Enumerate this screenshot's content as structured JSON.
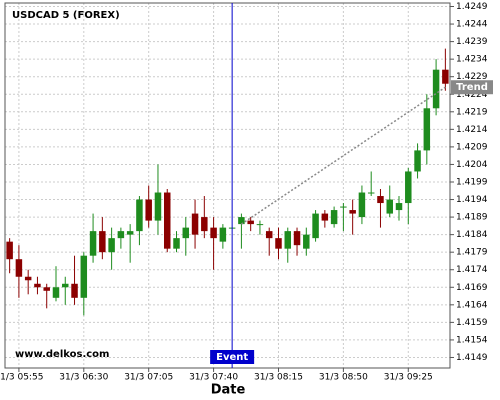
{
  "chart_data": {
    "type": "candlestick",
    "title": "USDCAD 5 (FOREX)",
    "watermark": "www.delkos.com",
    "x_label": "Date",
    "categories": [
      null,
      "31/3 05:55",
      null,
      null,
      null,
      null,
      null,
      null,
      "31/3 06:30",
      null,
      null,
      null,
      null,
      null,
      null,
      "31/3 07:05",
      null,
      null,
      null,
      null,
      null,
      null,
      "31/3 07:40",
      null,
      null,
      null,
      null,
      null,
      null,
      "31/3 08:15",
      null,
      null,
      null,
      null,
      null,
      null,
      "31/3 08:50",
      null,
      null,
      null,
      null,
      null,
      null,
      "31/3 09:25",
      null,
      null,
      null,
      null
    ],
    "open": [
      1.4182,
      1.4177,
      1.4172,
      1.417,
      1.4169,
      1.4166,
      1.4169,
      1.417,
      1.4166,
      1.4178,
      1.4185,
      1.4179,
      1.4183,
      1.4184,
      1.4185,
      1.4194,
      1.4188,
      1.4196,
      1.418,
      1.4183,
      1.419,
      1.4189,
      1.4186,
      1.4182,
      1.4186,
      1.4187,
      1.4188,
      1.4187,
      1.4185,
      1.4183,
      1.418,
      1.4185,
      1.418,
      1.4183,
      1.419,
      1.4187,
      1.4192,
      1.4191,
      1.4189,
      1.4196,
      1.4195,
      1.419,
      1.4191,
      1.4193,
      1.4202,
      1.4208,
      1.422,
      1.4231
    ],
    "high": [
      1.4183,
      1.4181,
      1.4174,
      1.4172,
      1.417,
      1.4175,
      1.4172,
      1.4178,
      1.4179,
      1.419,
      1.4189,
      1.4186,
      1.4186,
      1.4187,
      1.4195,
      1.4198,
      1.4204,
      1.4197,
      1.4185,
      1.4189,
      1.4194,
      1.4195,
      1.4189,
      1.4187,
      1.4186,
      1.419,
      1.4189,
      1.4188,
      1.4186,
      1.4186,
      1.4186,
      1.4186,
      1.4186,
      1.4191,
      1.4191,
      1.4192,
      1.4193,
      1.4194,
      1.4198,
      1.4202,
      1.4197,
      1.4198,
      1.4195,
      1.4203,
      1.421,
      1.4224,
      1.4234,
      1.4237
    ],
    "low": [
      1.4173,
      1.4166,
      1.4167,
      1.4167,
      1.4163,
      1.4165,
      1.4164,
      1.4164,
      1.4161,
      1.4176,
      1.4177,
      1.4174,
      1.418,
      1.4176,
      1.4181,
      1.4186,
      1.4184,
      1.4179,
      1.4179,
      1.4178,
      1.418,
      1.4183,
      1.4174,
      1.418,
      1.4186,
      1.418,
      1.4185,
      1.4184,
      1.4178,
      1.4177,
      1.4176,
      1.4178,
      1.4178,
      1.4182,
      1.4186,
      1.4186,
      1.4185,
      1.4184,
      1.4187,
      1.4195,
      1.4186,
      1.4189,
      1.4188,
      1.4187,
      1.42,
      1.4204,
      1.4218,
      1.4225
    ],
    "close": [
      1.4177,
      1.4172,
      1.4171,
      1.4169,
      1.4168,
      1.4169,
      1.417,
      1.4166,
      1.4178,
      1.4185,
      1.4179,
      1.4183,
      1.4185,
      1.4185,
      1.4194,
      1.4188,
      1.4196,
      1.418,
      1.4183,
      1.4186,
      1.4184,
      1.4185,
      1.4183,
      1.4186,
      1.4186,
      1.4189,
      1.4187,
      1.4187,
      1.4183,
      1.418,
      1.4185,
      1.4181,
      1.4184,
      1.419,
      1.4188,
      1.4191,
      1.4192,
      1.419,
      1.4196,
      1.4196,
      1.4193,
      1.4194,
      1.4193,
      1.4202,
      1.4208,
      1.422,
      1.4231,
      1.4227
    ],
    "up_color": "#1e8c1e",
    "down_color": "#8b0000",
    "ylim": [
      1.4146,
      1.425
    ],
    "yticks": [
      1.4149,
      1.4154,
      1.4159,
      1.4164,
      1.4169,
      1.4174,
      1.4179,
      1.4184,
      1.4189,
      1.4194,
      1.4199,
      1.4204,
      1.4209,
      1.4214,
      1.4219,
      1.4224,
      1.4229,
      1.4234,
      1.4239,
      1.4244,
      1.4249
    ],
    "grid": true,
    "event": {
      "label": "Event",
      "index": 24,
      "color": "#0000cc"
    },
    "trend": {
      "label": "Trend",
      "x": [
        25,
        47
      ],
      "y": [
        1.4187,
        1.4226
      ],
      "color": "#888888"
    }
  }
}
